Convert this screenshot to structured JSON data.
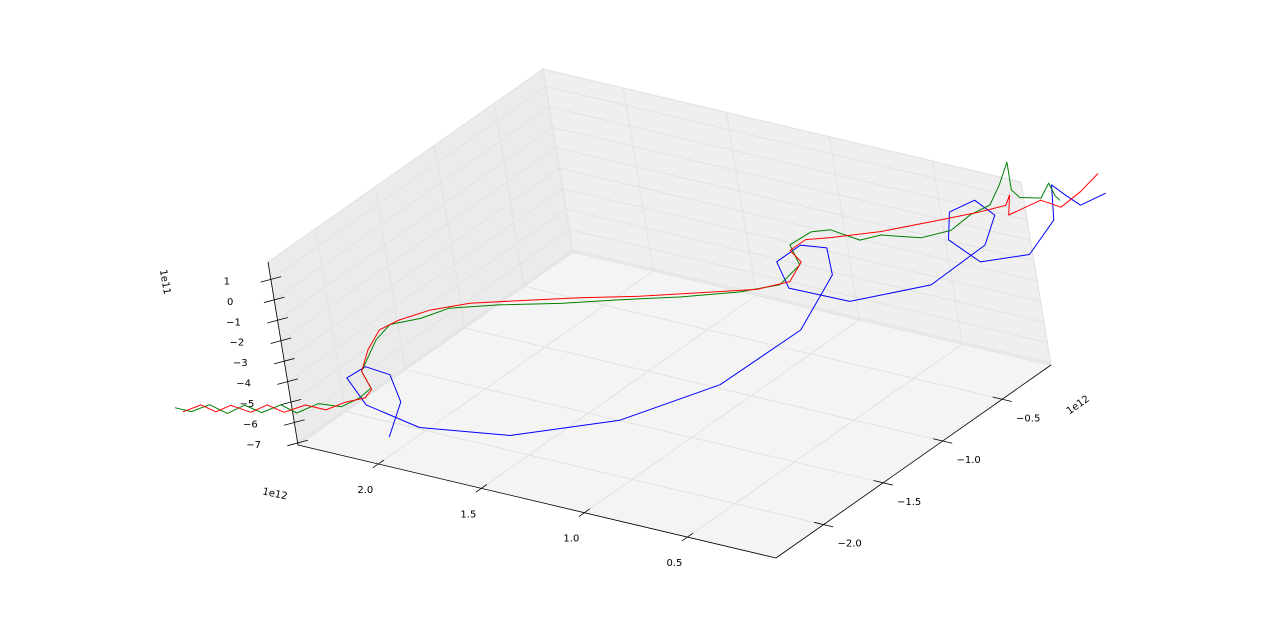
{
  "chart_data": {
    "type": "line3d",
    "xlim": [
      0.07,
      2.39
    ],
    "xticks": [
      0.5,
      {
        "value": 1,
        "label": "1.0"
      },
      1.5,
      {
        "value": 2,
        "label": "2.0"
      }
    ],
    "x_offset_label": "1e12",
    "ylim": [
      -2.4,
      -0.09
    ],
    "yticks": [
      {
        "value": -2,
        "label": "−2.0"
      },
      {
        "value": -1.5,
        "label": "−1.5"
      },
      {
        "value": -1,
        "label": "−1.0"
      },
      {
        "value": -0.5,
        "label": "−0.5"
      }
    ],
    "y_offset_label": "1e12",
    "zlim": [
      -7.1,
      1.85
    ],
    "zticks": [
      {
        "value": -7,
        "label": "−7"
      },
      {
        "value": -6,
        "label": "−6"
      },
      {
        "value": -5,
        "label": "−5"
      },
      {
        "value": -4,
        "label": "−4"
      },
      {
        "value": -3,
        "label": "−3"
      },
      {
        "value": -2,
        "label": "−2"
      },
      {
        "value": -1,
        "label": "−1"
      },
      0,
      1
    ],
    "z_offset_label": "1e11",
    "grid": true,
    "series": [
      {
        "color": "#0000ff",
        "x": [
          1.97,
          2.11,
          2.29,
          2.42,
          2.43,
          2.22,
          1.91,
          1.54,
          1.22,
          1.04,
          1.03,
          1.2,
          1.36,
          1.47,
          1.47,
          1.29,
          1.0,
          0.79,
          0.8,
          0.92,
          1.07,
          1.1,
          0.96,
          0.73,
          0.59,
          0.68,
          0.87,
          0.77,
          0.66,
          0.63
        ],
        "y": [
          -2.33,
          -1.99,
          -1.77,
          -1.75,
          -1.89,
          -2.09,
          -2.18,
          -2.06,
          -1.69,
          -1.16,
          -0.5,
          0.06,
          0.29,
          0.26,
          0.06,
          -0.15,
          -0.14,
          0.18,
          0.65,
          0.94,
          1.03,
          0.87,
          0.62,
          0.49,
          0.66,
          1.02,
          1.33,
          1.27,
          1.21,
          1.37
        ],
        "z": [
          -6,
          -6,
          -6,
          -6,
          -6,
          -6,
          -6,
          -6,
          -6,
          -6,
          -6,
          -6,
          -6,
          -6,
          -6,
          -6,
          -6,
          -6,
          -6,
          -6,
          -6,
          -6,
          -6,
          -6,
          -6,
          -6,
          -6,
          -6,
          -6,
          -6
        ]
      },
      {
        "color": "#008000",
        "x": [
          2.9,
          2.82,
          2.79,
          2.68,
          2.66,
          2.56,
          2.53,
          2.43,
          2.4,
          2.3,
          2.28,
          2.29,
          2.41,
          2.52,
          2.55,
          2.47,
          2.42,
          2.25,
          2.04,
          1.84,
          1.64,
          1.45,
          1.34,
          1.37,
          1.51,
          1.5,
          1.44,
          1.28,
          1.23,
          1.07,
          1.0,
          1.01,
          0.99,
          1.06,
          1.15,
          0.99,
          0.92,
          0.84,
          0.89,
          0.8,
          0.76
        ],
        "y": [
          -2.52,
          -2.52,
          -2.42,
          -2.46,
          -2.35,
          -2.38,
          -2.27,
          -2.31,
          -2.18,
          -2.16,
          -2.04,
          -1.93,
          -1.8,
          -1.49,
          -1.32,
          -1.2,
          -1.05,
          -0.91,
          -0.77,
          -0.61,
          -0.46,
          -0.29,
          -0.14,
          0.08,
          0.24,
          0.4,
          0.46,
          0.43,
          0.52,
          0.58,
          0.71,
          0.89,
          1.02,
          1.22,
          1.44,
          1.2,
          1.15,
          1.19,
          1.34,
          1.24,
          1.21
        ],
        "z": [
          -6,
          -6,
          -6,
          -6,
          -6,
          -6,
          -6,
          -6,
          -6,
          -6,
          -6,
          -6,
          -6,
          -6,
          -6,
          -6,
          -6,
          -6,
          -6,
          -6,
          -6,
          -6,
          -6,
          -6,
          -6,
          -6,
          -6,
          -6,
          -6,
          -6,
          -6,
          -6,
          -6,
          -6,
          -6,
          -6,
          -6,
          -6,
          -6,
          -6,
          -6
        ]
      },
      {
        "color": "#ff0000",
        "x": [
          2.85,
          2.82,
          2.73,
          2.71,
          2.6,
          2.58,
          2.48,
          2.44,
          2.34,
          2.31,
          2.26,
          2.28,
          2.41,
          2.5,
          2.56,
          2.54,
          2.48,
          2.37,
          2.2,
          2.0,
          1.79,
          1.59,
          1.4,
          1.32,
          1.38,
          1.48,
          1.48,
          1.4,
          1.25,
          1.12,
          1.0,
          0.93,
          0.97,
          0.87,
          0.83,
          0.72,
          0.73,
          0.76
        ],
        "y": [
          -2.54,
          -2.44,
          -2.47,
          -2.38,
          -2.4,
          -2.3,
          -2.33,
          -2.22,
          -2.22,
          -2.11,
          -2.03,
          -1.94,
          -1.8,
          -1.59,
          -1.39,
          -1.26,
          -1.11,
          -0.96,
          -0.83,
          -0.68,
          -0.54,
          -0.38,
          -0.23,
          -0.09,
          0.11,
          0.19,
          0.32,
          0.39,
          0.55,
          0.74,
          0.92,
          1.05,
          1.15,
          0.97,
          1.17,
          1.15,
          1.33,
          1.53
        ],
        "z": [
          -6,
          -6,
          -6,
          -6,
          -6,
          -6,
          -6,
          -6,
          -6,
          -6,
          -6,
          -6,
          -6,
          -6,
          -6,
          -6,
          -6,
          -6,
          -6,
          -6,
          -6,
          -6,
          -6,
          -6,
          -6,
          -6,
          -6,
          -6,
          -6,
          -6,
          -6,
          -6,
          -6,
          -6,
          -6,
          -6,
          -6,
          -6
        ]
      }
    ]
  }
}
